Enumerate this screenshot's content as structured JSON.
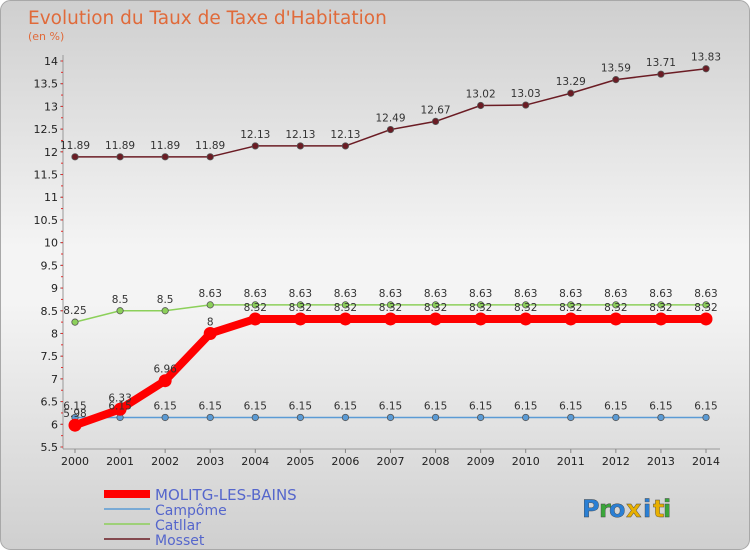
{
  "chart_data": {
    "type": "line",
    "title": "Evolution du Taux de Taxe d'Habitation",
    "subtitle": "(en %)",
    "x": [
      2000,
      2001,
      2002,
      2003,
      2004,
      2005,
      2006,
      2007,
      2008,
      2009,
      2010,
      2011,
      2012,
      2013,
      2014
    ],
    "ylim": [
      5.5,
      14
    ],
    "yticks": [
      "5.5",
      "6",
      "6.5",
      "7",
      "7.5",
      "8",
      "8.5",
      "9",
      "9.5",
      "10",
      "10.5",
      "11",
      "11.5",
      "12",
      "12.5",
      "13",
      "13.5",
      "14"
    ],
    "grid": false,
    "legend_position": "bottom-left",
    "series": [
      {
        "name": "Mosset",
        "color": "#6b1c24",
        "values": [
          11.89,
          11.89,
          11.89,
          11.89,
          12.13,
          12.13,
          12.13,
          12.49,
          12.67,
          13.02,
          13.03,
          13.29,
          13.59,
          13.71,
          13.83
        ],
        "labels": [
          "11.89",
          "11.89",
          "11.89",
          "11.89",
          "12.13",
          "12.13",
          "12.13",
          "12.49",
          "12.67",
          "13.02",
          "13.03",
          "13.29",
          "13.59",
          "13.71",
          "13.83"
        ]
      },
      {
        "name": "Catllar",
        "color": "#8cd05a",
        "values": [
          8.25,
          8.5,
          8.5,
          8.63,
          8.63,
          8.63,
          8.63,
          8.63,
          8.63,
          8.63,
          8.63,
          8.63,
          8.63,
          8.63,
          8.63
        ],
        "labels": [
          "8.25",
          "8.5",
          "8.5",
          "8.63",
          "8.63",
          "8.63",
          "8.63",
          "8.63",
          "8.63",
          "8.63",
          "8.63",
          "8.63",
          "8.63",
          "8.63",
          "8.63"
        ]
      },
      {
        "name": "Campôme",
        "color": "#5b9bd5",
        "values": [
          6.15,
          6.15,
          6.15,
          6.15,
          6.15,
          6.15,
          6.15,
          6.15,
          6.15,
          6.15,
          6.15,
          6.15,
          6.15,
          6.15,
          6.15
        ],
        "labels": [
          "6.15",
          "6.15",
          "6.15",
          "6.15",
          "6.15",
          "6.15",
          "6.15",
          "6.15",
          "6.15",
          "6.15",
          "6.15",
          "6.15",
          "6.15",
          "6.15",
          "6.15"
        ]
      },
      {
        "name": "MOLITG-LES-BAINS",
        "color": "#ff0000",
        "values": [
          5.98,
          6.33,
          6.96,
          8,
          8.32,
          8.32,
          8.32,
          8.32,
          8.32,
          8.32,
          8.32,
          8.32,
          8.32,
          8.32,
          8.32
        ],
        "labels": [
          "5.98",
          "6.33",
          "6.96",
          "8",
          "8.32",
          "8.32",
          "8.32",
          "8.32",
          "8.32",
          "8.32",
          "8.32",
          "8.32",
          "8.32",
          "8.32",
          "8.32"
        ]
      }
    ],
    "legend": [
      "MOLITG-LES-BAINS",
      "Campôme",
      "Catllar",
      "Mosset"
    ]
  },
  "branding": {
    "logo_text": "Proxiti",
    "letters": [
      "P",
      "r",
      "o",
      "x",
      "i",
      "t",
      "i"
    ],
    "letter_colors": [
      "#2a7fd4",
      "#3aa63a",
      "#2a7fd4",
      "#e8b000",
      "#2a7fd4",
      "#e8b000",
      "#3aa63a"
    ]
  },
  "colors": {
    "background": "#dcdcdc",
    "axis": "#888888"
  }
}
